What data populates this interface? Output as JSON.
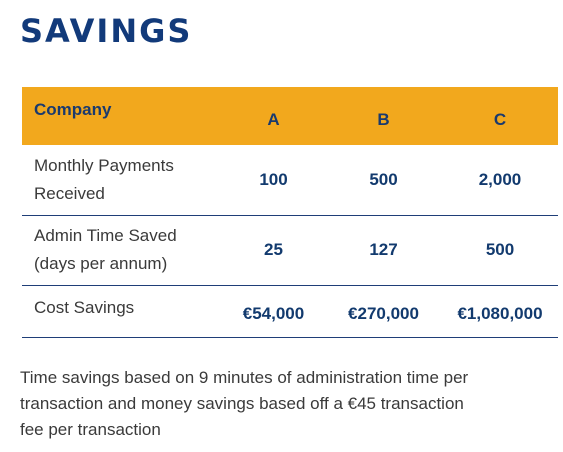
{
  "title": "SAVINGS",
  "table": {
    "header": {
      "label": "Company",
      "columns": [
        "A",
        "B",
        "C"
      ]
    },
    "rows": [
      {
        "label_line1": "Monthly Payments",
        "label_line2": "Received",
        "values": [
          "100",
          "500",
          "2,000"
        ]
      },
      {
        "label_line1": "Admin Time Saved",
        "label_line2": "(days per annum)",
        "values": [
          "25",
          "127",
          "500"
        ]
      },
      {
        "label_line1": "Cost Savings",
        "label_line2": "",
        "values": [
          "€54,000",
          "€270,000",
          "€1,080,000"
        ]
      }
    ]
  },
  "footnote": {
    "line1": "Time savings based on 9 minutes of administration time per",
    "line2": "transaction and money savings based off a €45 transaction",
    "line3": "fee per transaction"
  },
  "colors": {
    "title": "#123a7a",
    "header_background": "#f2a81d",
    "row_divider": "#1f3e78",
    "value_text": "#123a6e",
    "body_text": "#3a3a3a"
  }
}
